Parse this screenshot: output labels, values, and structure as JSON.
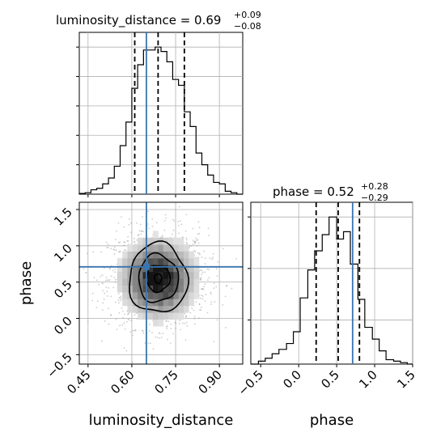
{
  "chart_data": {
    "type": "corner",
    "parameters": [
      "luminosity_distance",
      "phase"
    ],
    "truths": {
      "luminosity_distance": 0.65,
      "phase": 0.71
    },
    "truth_color": "#3b75af",
    "panels": [
      {
        "id": "luminosity_distance_1d",
        "type": "histogram",
        "parameter": "luminosity_distance",
        "title": {
          "main": "luminosity_distance = 0.69",
          "upper": "+0.09",
          "lower": "−0.08"
        },
        "quantiles": [
          0.61,
          0.69,
          0.78
        ],
        "xlim": [
          0.42,
          0.98
        ],
        "ylim": [
          0,
          1.0
        ],
        "bin_edges": [
          0.42,
          0.44,
          0.46,
          0.48,
          0.5,
          0.52,
          0.54,
          0.56,
          0.58,
          0.6,
          0.62,
          0.64,
          0.66,
          0.68,
          0.7,
          0.72,
          0.74,
          0.76,
          0.78,
          0.8,
          0.82,
          0.84,
          0.86,
          0.88,
          0.9,
          0.92,
          0.94,
          0.96,
          0.98
        ],
        "values": [
          0.005,
          0.01,
          0.03,
          0.04,
          0.07,
          0.11,
          0.19,
          0.33,
          0.49,
          0.72,
          0.88,
          0.98,
          0.98,
          1.0,
          0.97,
          0.9,
          0.78,
          0.74,
          0.56,
          0.46,
          0.28,
          0.2,
          0.13,
          0.08,
          0.07,
          0.02,
          0.01,
          0.0
        ]
      },
      {
        "id": "phase_1d",
        "type": "histogram",
        "parameter": "phase",
        "title": {
          "main": "phase = 0.52",
          "upper": "+0.28",
          "lower": "−0.29"
        },
        "quantiles": [
          0.23,
          0.52,
          0.8
        ],
        "xlim": [
          -0.63,
          1.5
        ],
        "ylim": [
          0,
          1.0
        ],
        "xticks": [
          "−0.5",
          "0.0",
          "0.5",
          "1.0",
          "1.5"
        ],
        "bin_edges": [
          -0.63,
          -0.53,
          -0.44,
          -0.35,
          -0.26,
          -0.16,
          -0.07,
          0.02,
          0.12,
          0.21,
          0.31,
          0.4,
          0.5,
          0.59,
          0.68,
          0.78,
          0.87,
          0.97,
          1.06,
          1.15,
          1.25,
          1.34,
          1.43,
          1.5
        ],
        "values": [
          0.0,
          0.02,
          0.04,
          0.07,
          0.1,
          0.14,
          0.22,
          0.45,
          0.64,
          0.77,
          0.88,
          1.0,
          0.85,
          0.9,
          0.68,
          0.44,
          0.25,
          0.17,
          0.09,
          0.03,
          0.02,
          0.01,
          0.0
        ]
      },
      {
        "id": "joint_2d",
        "type": "2d-density",
        "x_parameter": "luminosity_distance",
        "y_parameter": "phase",
        "xlim": [
          0.42,
          0.98
        ],
        "ylim": [
          -0.63,
          1.6
        ],
        "xticks": [
          "0.45",
          "0.60",
          "0.75",
          "0.90"
        ],
        "yticks": [
          "−0.5",
          "0.0",
          "0.5",
          "1.0",
          "1.5"
        ],
        "xlabel": "luminosity_distance",
        "ylabel": "phase",
        "peak": {
          "x": 0.69,
          "y": 0.55
        },
        "contour_widths": [
          {
            "sx": 0.012,
            "sy": 0.065
          },
          {
            "sx": 0.04,
            "sy": 0.18
          },
          {
            "sx": 0.068,
            "sy": 0.33
          },
          {
            "sx": 0.1,
            "sy": 0.48
          }
        ]
      }
    ],
    "xlabels": [
      "luminosity_distance",
      "phase"
    ],
    "ylabels": [
      "phase"
    ]
  }
}
